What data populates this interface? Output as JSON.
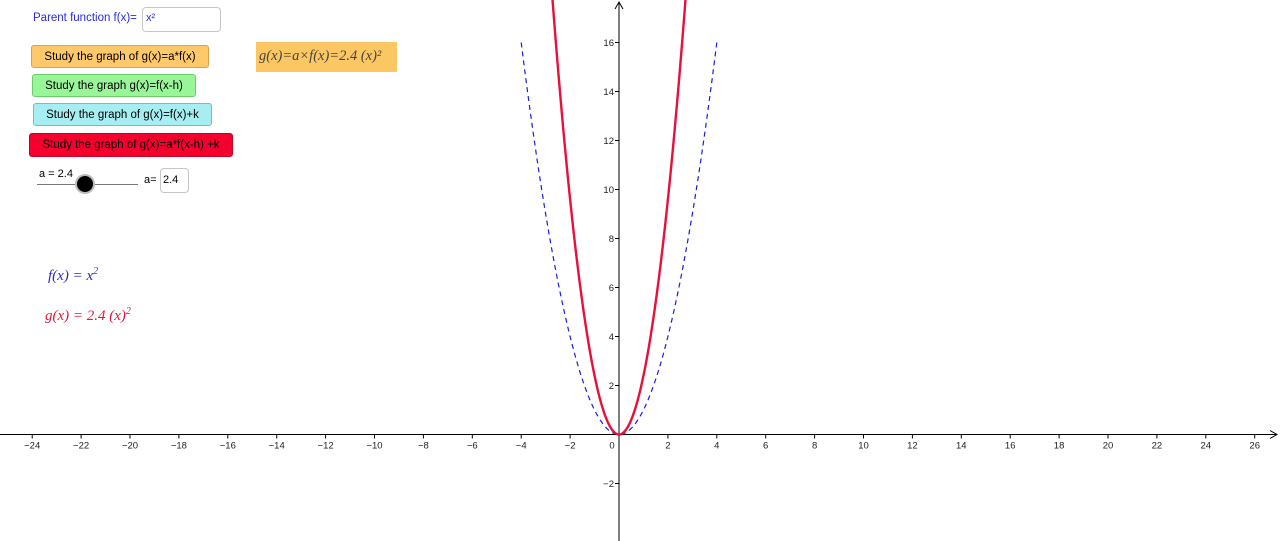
{
  "parent": {
    "label": "Parent function f(x)=",
    "value": "x²"
  },
  "buttons": {
    "stretch": "Study the graph of g(x)=a*f(x)",
    "shift_h": "Study the graph g(x)=f(x-h)",
    "shift_k": "Study the graph of g(x)=f(x)+k",
    "combined": "Study the graph of g(x)=a*f(x-h) +k"
  },
  "g_formula_box": "g(x)=a×f(x)=2.4 (x)²",
  "slider": {
    "label": "a = 2.4",
    "value": 2.4,
    "min": 0,
    "max": 5
  },
  "a_input": {
    "label": "a=",
    "value": "2.4"
  },
  "algebra": {
    "f_text": "f(x)  =  x",
    "f_exp": "2",
    "g_text": "g(x)  =  2.4  (x)",
    "g_exp": "2"
  },
  "colors": {
    "f_curve": "#1c1ce0",
    "g_curve": "#e8103a",
    "axis": "#000000"
  },
  "chart_data": {
    "type": "line",
    "x_ticks": [
      -24,
      -22,
      -20,
      -18,
      -16,
      -14,
      -12,
      -10,
      -8,
      -6,
      -4,
      -2,
      0,
      2,
      4,
      6,
      8,
      10,
      12,
      14,
      16,
      18,
      20,
      22,
      24,
      26
    ],
    "y_ticks": [
      -2,
      2,
      4,
      6,
      8,
      10,
      12,
      14,
      16
    ],
    "xlim": [
      -25.3,
      27
    ],
    "ylim": [
      -4.3,
      17.8
    ],
    "series": [
      {
        "name": "f(x) = x²",
        "a": 1,
        "style": "dashed"
      },
      {
        "name": "g(x) = 2.4 (x)²",
        "a": 2.4,
        "style": "solid"
      }
    ]
  }
}
